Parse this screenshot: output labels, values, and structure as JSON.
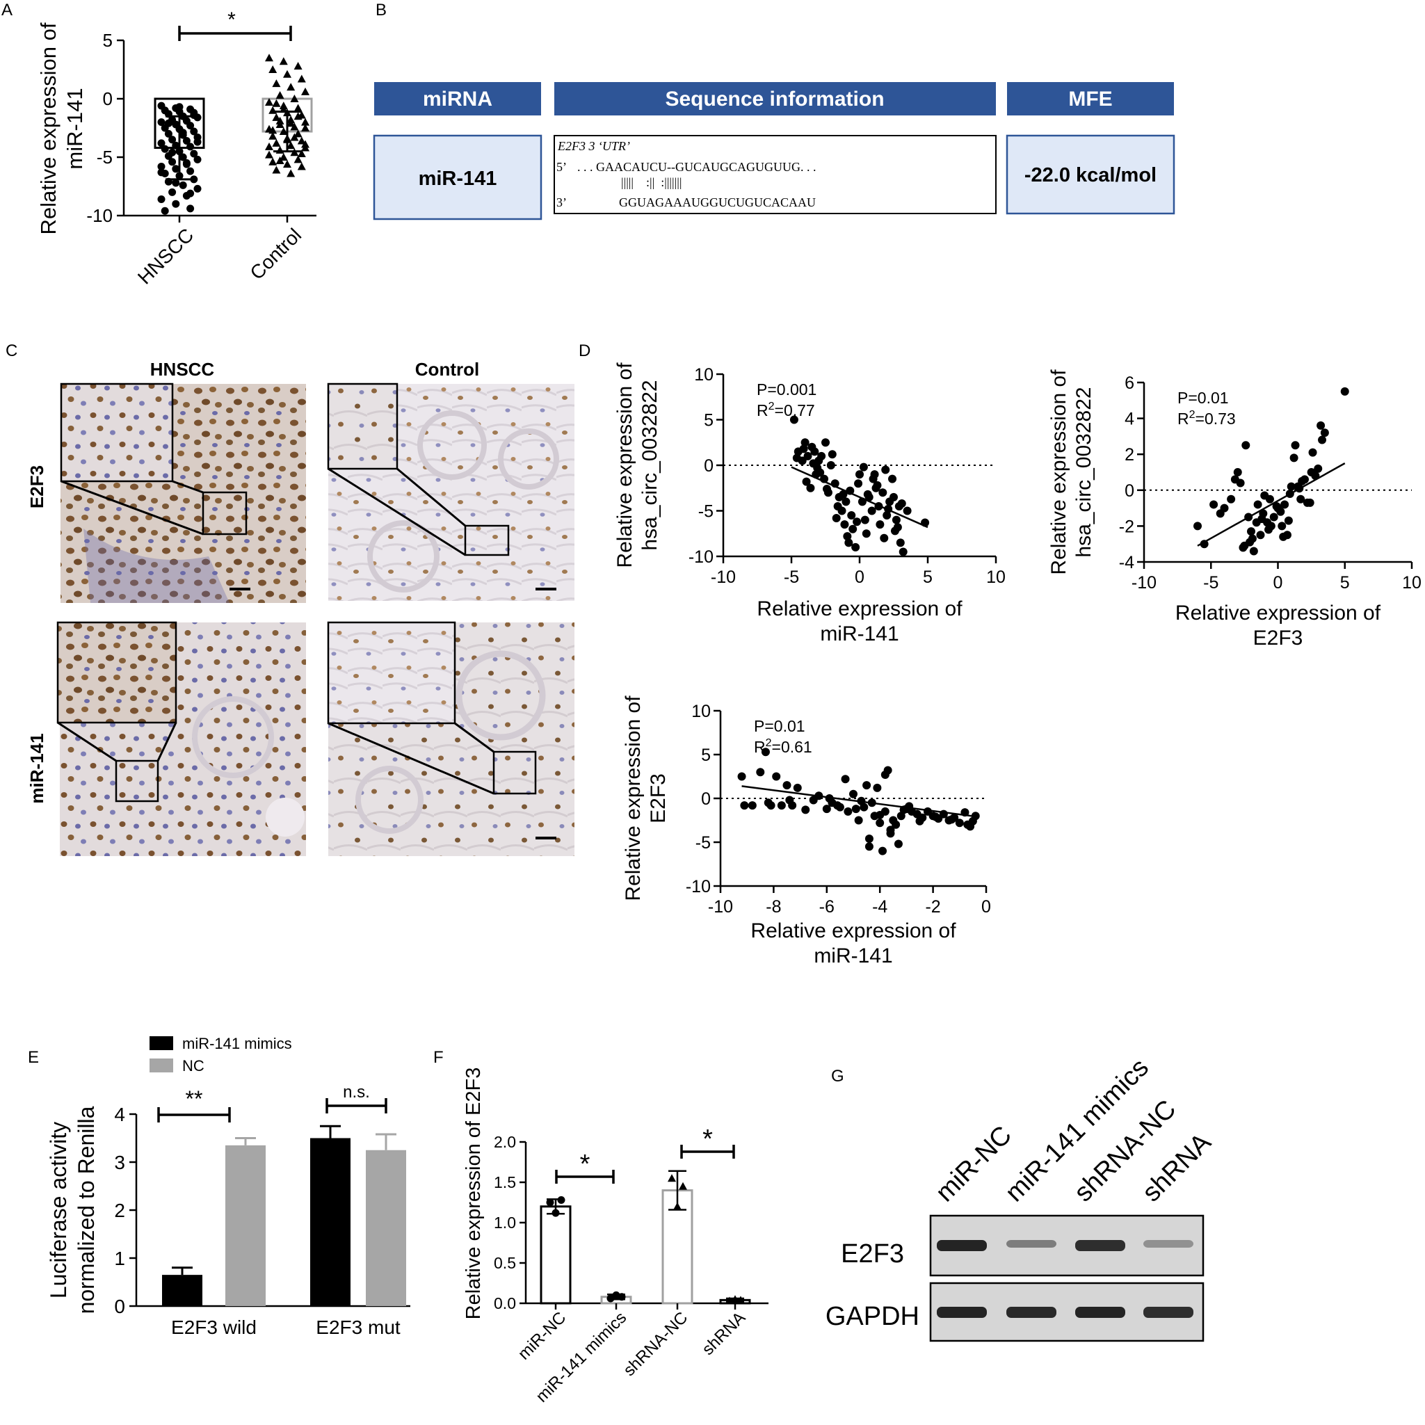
{
  "panel_letters": {
    "a": "A",
    "b": "B",
    "c": "C",
    "d": "D",
    "e": "E",
    "f": "F",
    "g": "G"
  },
  "colors": {
    "header": "#2e5597",
    "cell": "#dfe8f7",
    "bar_black": "#000000",
    "bar_gray": "#a6a6a6",
    "bar_gray_outline": "#a0a0a0",
    "stain_brown": "#7a5230",
    "stain_blue": "#6b6ba8",
    "tissue_bg": "#ece8ee"
  },
  "table": {
    "headers": [
      "miRNA",
      "Sequence information",
      "MFE"
    ],
    "mirna": "miR-141",
    "mfe": "-22.0 kcal/mol",
    "seq_title": "E2F3 3 ‘UTR’",
    "seq_line1_prefix": "5’",
    "seq_line1": ". . . GAACAUCU--GUCAUGCAGUGUUG. . .",
    "seq_pairs": "|||||    :||  :|||||||",
    "seq_line3_prefix": "3’",
    "seq_line3": "GGUAGAAAUGGUCUGUCACAAU"
  },
  "ihc": {
    "col_labels": [
      "HNSCC",
      "Control"
    ],
    "row_labels": [
      "E2F3",
      "miR-141"
    ]
  },
  "blot": {
    "lanes": [
      "miR-NC",
      "miR-141 mimics",
      "shRNA-NC",
      "shRNA"
    ],
    "rows": [
      "E2F3",
      "GAPDH"
    ],
    "e2f3_intensity": [
      0.9,
      0.45,
      0.85,
      0.35
    ],
    "gapdh_intensity": [
      0.9,
      0.88,
      0.9,
      0.85
    ]
  },
  "chart_data": [
    {
      "id": "A",
      "type": "bar",
      "categories": [
        "HNSCC",
        "Control"
      ],
      "values": [
        -4.2,
        -2.8
      ],
      "error": [
        2.7,
        1.7
      ],
      "ylabel_lines": [
        "Relative expression of",
        "miR-141"
      ],
      "ylim": [
        -10,
        5
      ],
      "yticks": [
        5,
        0,
        -5,
        -10
      ],
      "significance": "*",
      "points_HNSCC": [
        -0.6,
        -0.8,
        -0.9,
        -1.0,
        -1.1,
        -1.2,
        -1.3,
        -1.5,
        -1.6,
        -1.8,
        -1.9,
        -2.0,
        -2.2,
        -2.3,
        -2.5,
        -2.6,
        -2.8,
        -3.0,
        -3.1,
        -3.3,
        -3.5,
        -3.6,
        -3.8,
        -4.0,
        -4.1,
        -4.3,
        -4.5,
        -4.7,
        -4.9,
        -5.0,
        -5.2,
        -5.4,
        -5.6,
        -5.8,
        -6.0,
        -6.2,
        -6.4,
        -6.6,
        -6.9,
        -7.1,
        -7.4,
        -7.7,
        -8.0,
        -8.3,
        -8.6,
        -9.0,
        -9.4,
        -9.6,
        -0.7,
        -1.4,
        -2.1,
        -2.9,
        -3.7,
        -4.6,
        -5.5,
        -6.3,
        -7.2,
        -8.1
      ],
      "points_Control": [
        3.5,
        3.2,
        2.8,
        2.5,
        2.1,
        1.7,
        1.3,
        1.0,
        0.6,
        0.3,
        0.0,
        -0.3,
        -0.6,
        -0.8,
        -1.0,
        -1.2,
        -1.4,
        -1.6,
        -1.8,
        -2.0,
        -2.2,
        -2.4,
        -2.6,
        -2.8,
        -3.0,
        -3.2,
        -3.4,
        -3.6,
        -3.8,
        -4.0,
        -4.2,
        -4.4,
        -4.6,
        -4.8,
        -5.0,
        -5.2,
        -5.4,
        -5.6,
        -5.8,
        -6.1,
        -6.4,
        -2.5,
        -1.9,
        -3.3,
        -4.1,
        -0.9,
        -1.5,
        -2.7,
        -3.5,
        -4.7,
        -0.4,
        -2.1,
        -3.9,
        -5.3
      ]
    },
    {
      "id": "D1",
      "type": "scatter",
      "stat_p": "P=0.001",
      "stat_r2_prefix": "R",
      "stat_r2_value": "=0.77",
      "xlabel_lines": [
        "Relative expression of",
        "miR-141"
      ],
      "ylabel_lines": [
        "Relative expression of",
        "hsa_circ_0032822"
      ],
      "xlim": [
        -10,
        10
      ],
      "ylim": [
        -10,
        10
      ],
      "xticks": [
        -10,
        -5,
        0,
        5,
        10
      ],
      "yticks": [
        10,
        5,
        0,
        -5,
        -10
      ],
      "fit": [
        [
          -5,
          -0.2
        ],
        [
          5,
          -6.8
        ]
      ],
      "x": [
        -4.8,
        -4.5,
        -4.2,
        -4.0,
        -3.8,
        -3.6,
        -3.5,
        -3.3,
        -3.2,
        -3.0,
        -2.8,
        -2.6,
        -2.5,
        -2.3,
        -2.1,
        -2.0,
        -1.8,
        -1.6,
        -1.5,
        -1.3,
        -1.1,
        -1.0,
        -0.8,
        -0.6,
        -0.5,
        -0.3,
        -0.1,
        0.0,
        0.2,
        0.4,
        0.5,
        0.7,
        0.9,
        1.0,
        1.2,
        1.4,
        1.5,
        1.7,
        1.9,
        2.0,
        2.2,
        2.4,
        2.5,
        2.7,
        2.9,
        3.0,
        3.2,
        3.5,
        -4.6,
        -3.9,
        -3.1,
        -2.4,
        -1.7,
        -0.9,
        -0.2,
        0.6,
        1.3,
        2.1,
        2.8,
        -4.1,
        -2.9,
        -1.2,
        0.3,
        1.8,
        3.1,
        -3.4,
        -0.7,
        1.1,
        2.6,
        4.8
      ],
      "y": [
        5.0,
        1.5,
        0.5,
        2.5,
        1.0,
        -2.5,
        2.0,
        1.5,
        -1.0,
        0.5,
        1.0,
        -1.5,
        2.5,
        -3.0,
        0.0,
        1.2,
        -2.0,
        -4.5,
        -3.5,
        -5.0,
        -6.5,
        -4.0,
        -8.5,
        -5.5,
        -7.0,
        -9.0,
        -2.0,
        -1.0,
        -4.0,
        -6.0,
        -7.5,
        -3.5,
        -5.0,
        -1.5,
        -2.5,
        -4.5,
        -6.5,
        -3.0,
        -0.5,
        -5.5,
        -4.0,
        -1.5,
        -3.5,
        -6.0,
        -4.5,
        -8.5,
        -9.5,
        -5.0,
        0.8,
        -1.8,
        -0.3,
        -2.6,
        -5.8,
        -7.8,
        -6.2,
        -3.2,
        -2.2,
        -4.8,
        -6.8,
        1.8,
        -0.8,
        -3.2,
        -0.2,
        -8.0,
        -4.2,
        0.2,
        -2.8,
        -1.0,
        -7.2,
        -6.3
      ]
    },
    {
      "id": "D2",
      "type": "scatter",
      "stat_p": "P=0.01",
      "stat_r2_prefix": "R",
      "stat_r2_value": "=0.73",
      "xlabel_lines": [
        "Relative expression of",
        "E2F3"
      ],
      "ylabel_lines": [
        "Relative expression of",
        "hsa_circ_0032822"
      ],
      "xlim": [
        -10,
        10
      ],
      "ylim": [
        -4,
        6
      ],
      "xticks": [
        -10,
        -5,
        0,
        5,
        10
      ],
      "yticks": [
        6,
        4,
        2,
        0,
        -2,
        -4
      ],
      "fit": [
        [
          -6,
          -3.1
        ],
        [
          5,
          1.5
        ]
      ],
      "x": [
        -6.0,
        -5.5,
        -4.8,
        -4.3,
        -4.0,
        -3.5,
        -3.0,
        -2.8,
        -2.6,
        -2.4,
        -2.2,
        -2.0,
        -1.8,
        -1.6,
        -1.5,
        -1.3,
        -1.1,
        -1.0,
        -0.8,
        -0.6,
        -0.5,
        -0.3,
        -0.1,
        0.0,
        0.2,
        0.3,
        0.5,
        0.7,
        0.8,
        1.0,
        1.2,
        1.3,
        1.5,
        1.7,
        1.8,
        2.0,
        2.2,
        2.4,
        2.6,
        2.8,
        3.0,
        3.2,
        3.5,
        5.0,
        -3.2,
        -2.1,
        -1.2,
        0.4,
        1.6,
        2.5,
        -0.7,
        0.9,
        -1.9,
        3.3,
        -2.5
      ],
      "y": [
        -2.0,
        -3.0,
        -0.8,
        -1.3,
        -1.0,
        -0.5,
        1.0,
        0.4,
        -3.2,
        2.5,
        -1.5,
        -2.3,
        -3.4,
        -1.8,
        -0.8,
        -2.5,
        -1.3,
        -0.3,
        -1.8,
        -0.5,
        -2.0,
        -1.5,
        -0.9,
        -1.0,
        -1.2,
        -2.0,
        -0.8,
        -2.5,
        -1.7,
        0.2,
        1.8,
        2.5,
        0.2,
        -0.5,
        0.5,
        0.6,
        -0.7,
        -0.7,
        2.1,
        0.8,
        1.2,
        3.6,
        3.2,
        5.5,
        0.6,
        -2.9,
        -1.6,
        -2.6,
        0.1,
        1.0,
        -2.2,
        -0.2,
        -2.7,
        2.8,
        -3.1
      ]
    },
    {
      "id": "D3",
      "type": "scatter",
      "stat_p": "P=0.01",
      "stat_r2_prefix": "R",
      "stat_r2_value": "=0.61",
      "xlabel_lines": [
        "Relative expression of",
        "miR-141"
      ],
      "ylabel_lines": [
        "Relative expression of",
        "E2F3"
      ],
      "xlim": [
        -10,
        0
      ],
      "ylim": [
        -10,
        10
      ],
      "xticks": [
        -10,
        -8,
        -6,
        -4,
        -2,
        0
      ],
      "yticks": [
        10,
        5,
        0,
        -5,
        -10
      ],
      "fit": [
        [
          -9.2,
          1.4
        ],
        [
          -0.3,
          -2.1
        ]
      ],
      "x": [
        -9.2,
        -8.8,
        -8.5,
        -8.3,
        -8.1,
        -7.9,
        -7.7,
        -7.5,
        -7.3,
        -7.1,
        -6.8,
        -6.5,
        -6.3,
        -6.0,
        -5.8,
        -5.6,
        -5.5,
        -5.3,
        -5.2,
        -5.0,
        -4.9,
        -4.8,
        -4.6,
        -4.5,
        -4.4,
        -4.3,
        -4.2,
        -4.1,
        -4.0,
        -3.9,
        -3.8,
        -3.7,
        -3.6,
        -3.5,
        -3.4,
        -3.3,
        -3.2,
        -3.0,
        -2.8,
        -2.6,
        -2.4,
        -2.2,
        -2.0,
        -1.8,
        -1.6,
        -1.4,
        -1.2,
        -1.0,
        -0.8,
        -0.6,
        -0.4,
        -9.1,
        -8.2,
        -7.4,
        -5.9,
        -4.7,
        -4.0,
        -3.8,
        -3.1,
        -2.9,
        -2.5,
        -1.9,
        -1.3,
        -0.7,
        -0.5,
        -3.6,
        -4.4
      ],
      "y": [
        2.5,
        -0.8,
        3.0,
        5.3,
        -0.8,
        2.5,
        -0.8,
        1.5,
        -0.8,
        1.2,
        -1.3,
        -0.2,
        0.3,
        -1.2,
        -0.5,
        -0.8,
        -1.0,
        2.2,
        -1.5,
        0.5,
        -1.2,
        -2.5,
        -1.0,
        1.5,
        -5.5,
        -0.5,
        -2.0,
        1.2,
        -2.8,
        -6.0,
        -1.5,
        3.2,
        -4.0,
        -2.5,
        -3.0,
        -5.2,
        -2.0,
        -1.2,
        -1.5,
        -1.8,
        -2.2,
        -1.5,
        -2.0,
        -2.3,
        -1.8,
        -2.5,
        -2.2,
        -2.8,
        -1.6,
        -3.2,
        -2.0,
        -0.8,
        -0.5,
        -0.2,
        0.0,
        -0.3,
        -1.9,
        2.7,
        -1.3,
        -0.9,
        -2.6,
        -2.1,
        -2.4,
        -3.0,
        -2.6,
        -3.6,
        -4.6
      ]
    },
    {
      "id": "E",
      "type": "bar",
      "categories": [
        "E2F3 wild",
        "E2F3 mut"
      ],
      "series": [
        {
          "name": "miR-141 mimics",
          "values": [
            0.65,
            3.5
          ],
          "error": [
            0.15,
            0.25
          ]
        },
        {
          "name": "NC",
          "values": [
            3.35,
            3.25
          ],
          "error": [
            0.15,
            0.33
          ]
        }
      ],
      "ylabel_lines": [
        "Luciferase activity",
        "normalized to Renilla"
      ],
      "ylim": [
        0,
        4
      ],
      "yticks": [
        4,
        3,
        2,
        1,
        0
      ],
      "significance": [
        "**",
        "n.s."
      ],
      "legend_position": "top-left"
    },
    {
      "id": "F",
      "type": "bar",
      "categories": [
        "miR-NC",
        "miR-141 mimics",
        "shRNA-NC",
        "shRNA"
      ],
      "values": [
        1.2,
        0.08,
        1.4,
        0.04
      ],
      "error": [
        0.09,
        0.03,
        0.24,
        0.02
      ],
      "points": [
        [
          1.25,
          1.12,
          1.28
        ],
        [
          0.06,
          0.1,
          0.08
        ],
        [
          1.55,
          1.2,
          1.45
        ],
        [
          0.03,
          0.05,
          0.04
        ]
      ],
      "ylabel": "Relative expression of E2F3",
      "ylim": [
        0,
        2.0
      ],
      "yticks": [
        "0.0",
        "0.5",
        "1.0",
        "1.5",
        "2.0"
      ],
      "significance": [
        "*",
        "*"
      ]
    }
  ]
}
